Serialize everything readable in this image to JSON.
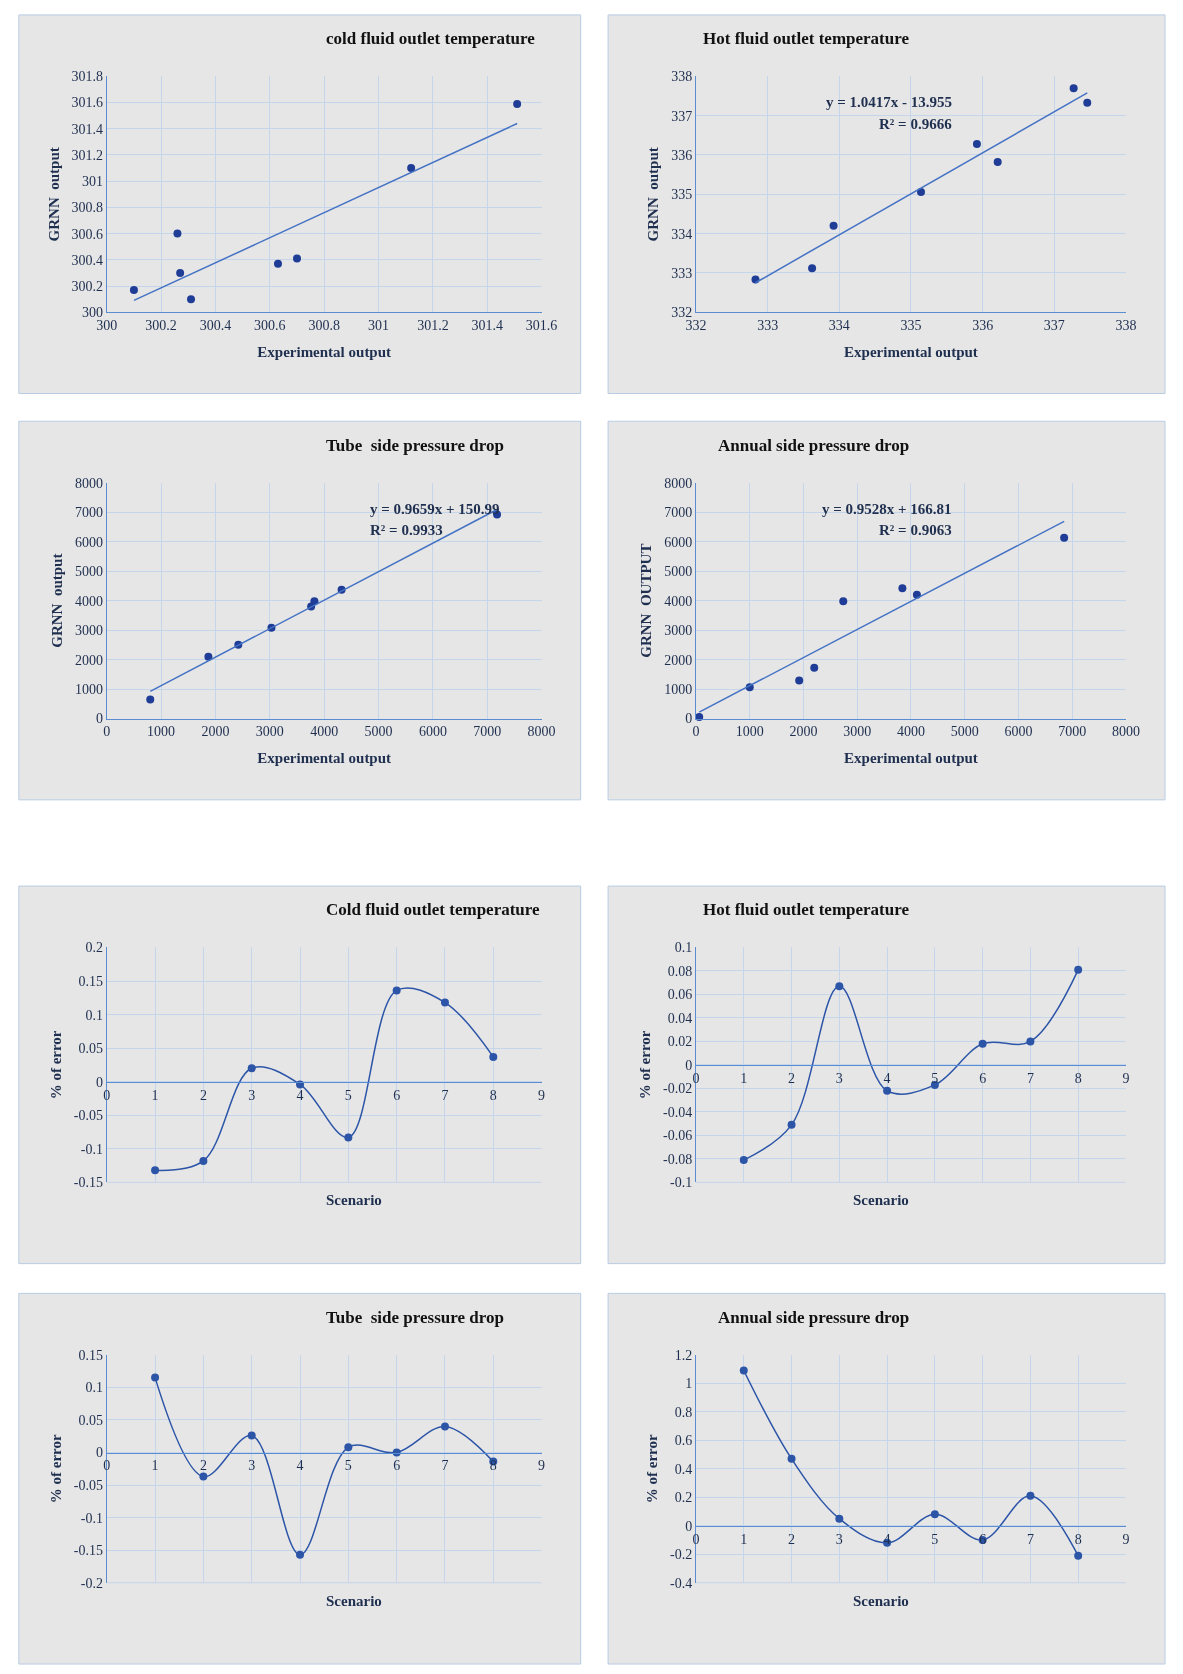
{
  "chart_data": [
    {
      "type": "scatter",
      "title": "cold fluid outlet temperature",
      "xlabel": "Experimental output",
      "ylabel": "GRNN  output",
      "marker": "circle",
      "grid": true,
      "xlim": [
        300,
        301.6
      ],
      "xticks": [
        300,
        300.2,
        300.4,
        300.6,
        300.8,
        301,
        301.2,
        301.4,
        301.6
      ],
      "ylim": [
        300,
        301.8
      ],
      "yticks": [
        300,
        300.2,
        300.4,
        300.6,
        300.8,
        301,
        301.2,
        301.4,
        301.6,
        301.8
      ],
      "series": [
        {
          "color": "#1f3d96",
          "x": [
            300.1,
            300.26,
            300.27,
            300.31,
            300.63,
            300.7,
            301.12,
            301.51
          ],
          "values": [
            300.17,
            300.6,
            300.3,
            300.1,
            300.37,
            300.41,
            301.1,
            301.59
          ]
        },
        {
          "type": "line",
          "marker": "none",
          "color": "#4472c4",
          "x": [
            300.1,
            301.51
          ],
          "values": [
            300.09,
            301.44
          ]
        }
      ]
    },
    {
      "type": "scatter",
      "title": "Hot fluid outlet temperature",
      "xlabel": "Experimental output",
      "ylabel": "GRNN  output",
      "marker": "circle",
      "grid": true,
      "xlim": [
        332,
        338
      ],
      "xticks": [
        332,
        333,
        334,
        335,
        336,
        337,
        338
      ],
      "ylim": [
        332,
        338
      ],
      "yticks": [
        332,
        333,
        334,
        335,
        336,
        337,
        338
      ],
      "annotations": [
        "y = 1.0417x - 13.955",
        "R² = 0.9666"
      ],
      "series": [
        {
          "color": "#1f3d96",
          "x": [
            332.83,
            333.62,
            333.92,
            335.14,
            335.92,
            336.21,
            337.27,
            337.46
          ],
          "values": [
            332.83,
            333.12,
            334.2,
            335.06,
            336.28,
            335.82,
            337.7,
            337.33
          ]
        },
        {
          "type": "line",
          "marker": "none",
          "color": "#4472c4",
          "x": [
            332.83,
            337.46
          ],
          "values": [
            332.75,
            337.58
          ]
        }
      ]
    },
    {
      "type": "scatter",
      "title": "Tube  side pressure drop",
      "xlabel": "Experimental output",
      "ylabel": "GRNN  output",
      "marker": "circle",
      "grid": true,
      "xlim": [
        0,
        8000
      ],
      "xticks": [
        0,
        1000,
        2000,
        3000,
        4000,
        5000,
        6000,
        7000,
        8000
      ],
      "ylim": [
        0,
        8000
      ],
      "yticks": [
        0,
        1000,
        2000,
        3000,
        4000,
        5000,
        6000,
        7000,
        8000
      ],
      "annotations": [
        "y = 0.9659x + 150.99",
        "R² = 0.9933"
      ],
      "series": [
        {
          "color": "#1f3d96",
          "x": [
            800,
            1870,
            2420,
            3030,
            3760,
            3820,
            4320,
            7180
          ],
          "values": [
            650,
            2100,
            2500,
            3080,
            3800,
            3980,
            4370,
            6920
          ]
        },
        {
          "type": "line",
          "marker": "none",
          "color": "#4472c4",
          "x": [
            800,
            7180
          ],
          "values": [
            920,
            7090
          ]
        }
      ]
    },
    {
      "type": "scatter",
      "title": "Annual side pressure drop",
      "xlabel": "Experimental output",
      "ylabel": "GRNN  OUTPUT",
      "marker": "circle",
      "grid": true,
      "xlim": [
        0,
        8000
      ],
      "xticks": [
        0,
        1000,
        2000,
        3000,
        4000,
        5000,
        6000,
        7000,
        8000
      ],
      "ylim": [
        0,
        8000
      ],
      "yticks": [
        0,
        1000,
        2000,
        3000,
        4000,
        5000,
        6000,
        7000,
        8000
      ],
      "annotations": [
        "y = 0.9528x + 166.81",
        "R² = 0.9063"
      ],
      "series": [
        {
          "color": "#1f3d96",
          "x": [
            60,
            1000,
            1920,
            2200,
            2740,
            3840,
            4110,
            6850
          ],
          "values": [
            50,
            1060,
            1290,
            1720,
            3980,
            4420,
            4200,
            6130
          ]
        },
        {
          "type": "line",
          "marker": "none",
          "color": "#4472c4",
          "x": [
            60,
            6850
          ],
          "values": [
            220,
            6690
          ]
        }
      ]
    },
    {
      "type": "line",
      "title": "Cold fluid outlet temperature",
      "xlabel": "Scenario",
      "ylabel": "% of error",
      "marker": "circle",
      "grid": true,
      "xlim": [
        0,
        9
      ],
      "xticks": [
        0,
        1,
        2,
        3,
        4,
        5,
        6,
        7,
        8,
        9
      ],
      "ylim": [
        -0.15,
        0.2
      ],
      "yticks": [
        -0.15,
        -0.1,
        -0.05,
        0,
        0.05,
        0.1,
        0.15,
        0.2
      ],
      "series": [
        {
          "color": "#2c55a8",
          "x": [
            1,
            2,
            3,
            4,
            5,
            6,
            7,
            8
          ],
          "values": [
            -0.132,
            -0.118,
            0.02,
            -0.004,
            -0.083,
            0.136,
            0.118,
            0.037
          ]
        }
      ]
    },
    {
      "type": "line",
      "title": "Hot fluid outlet temperature",
      "xlabel": "Scenario",
      "ylabel": "% of error",
      "marker": "circle",
      "grid": true,
      "xlim": [
        0,
        9
      ],
      "xticks": [
        0,
        1,
        2,
        3,
        4,
        5,
        6,
        7,
        8,
        9
      ],
      "ylim": [
        -0.1,
        0.1
      ],
      "yticks": [
        -0.1,
        -0.08,
        -0.06,
        -0.04,
        -0.02,
        0,
        0.02,
        0.04,
        0.06,
        0.08,
        0.1
      ],
      "series": [
        {
          "color": "#2c55a8",
          "x": [
            1,
            2,
            3,
            4,
            5,
            6,
            7,
            8
          ],
          "values": [
            -0.081,
            -0.051,
            0.067,
            -0.022,
            -0.017,
            0.018,
            0.02,
            0.081
          ]
        }
      ]
    },
    {
      "type": "line",
      "title": "Tube  side pressure drop",
      "xlabel": "Scenario",
      "ylabel": "% of error",
      "marker": "circle",
      "grid": true,
      "xlim": [
        0,
        9
      ],
      "xticks": [
        0,
        1,
        2,
        3,
        4,
        5,
        6,
        7,
        8,
        9
      ],
      "ylim": [
        -0.2,
        0.15
      ],
      "yticks": [
        -0.2,
        -0.15,
        -0.1,
        -0.05,
        0,
        0.05,
        0.1,
        0.15
      ],
      "series": [
        {
          "color": "#2c55a8",
          "x": [
            1,
            2,
            3,
            4,
            5,
            6,
            7,
            8
          ],
          "values": [
            0.115,
            -0.037,
            0.026,
            -0.157,
            0.008,
            0.0,
            0.04,
            -0.014
          ]
        }
      ]
    },
    {
      "type": "line",
      "title": "Annual side pressure drop",
      "xlabel": "Scenario",
      "ylabel": "% of error",
      "marker": "circle",
      "grid": true,
      "xlim": [
        0,
        9
      ],
      "xticks": [
        0,
        1,
        2,
        3,
        4,
        5,
        6,
        7,
        8,
        9
      ],
      "ylim": [
        -0.4,
        1.2
      ],
      "yticks": [
        -0.4,
        -0.2,
        0,
        0.2,
        0.4,
        0.6,
        0.8,
        1,
        1.2
      ],
      "series": [
        {
          "color": "#2c55a8",
          "x": [
            1,
            2,
            3,
            4,
            5,
            6,
            7,
            8
          ],
          "values": [
            1.09,
            0.47,
            0.05,
            -0.12,
            0.08,
            -0.1,
            0.21,
            -0.21
          ]
        }
      ]
    }
  ]
}
